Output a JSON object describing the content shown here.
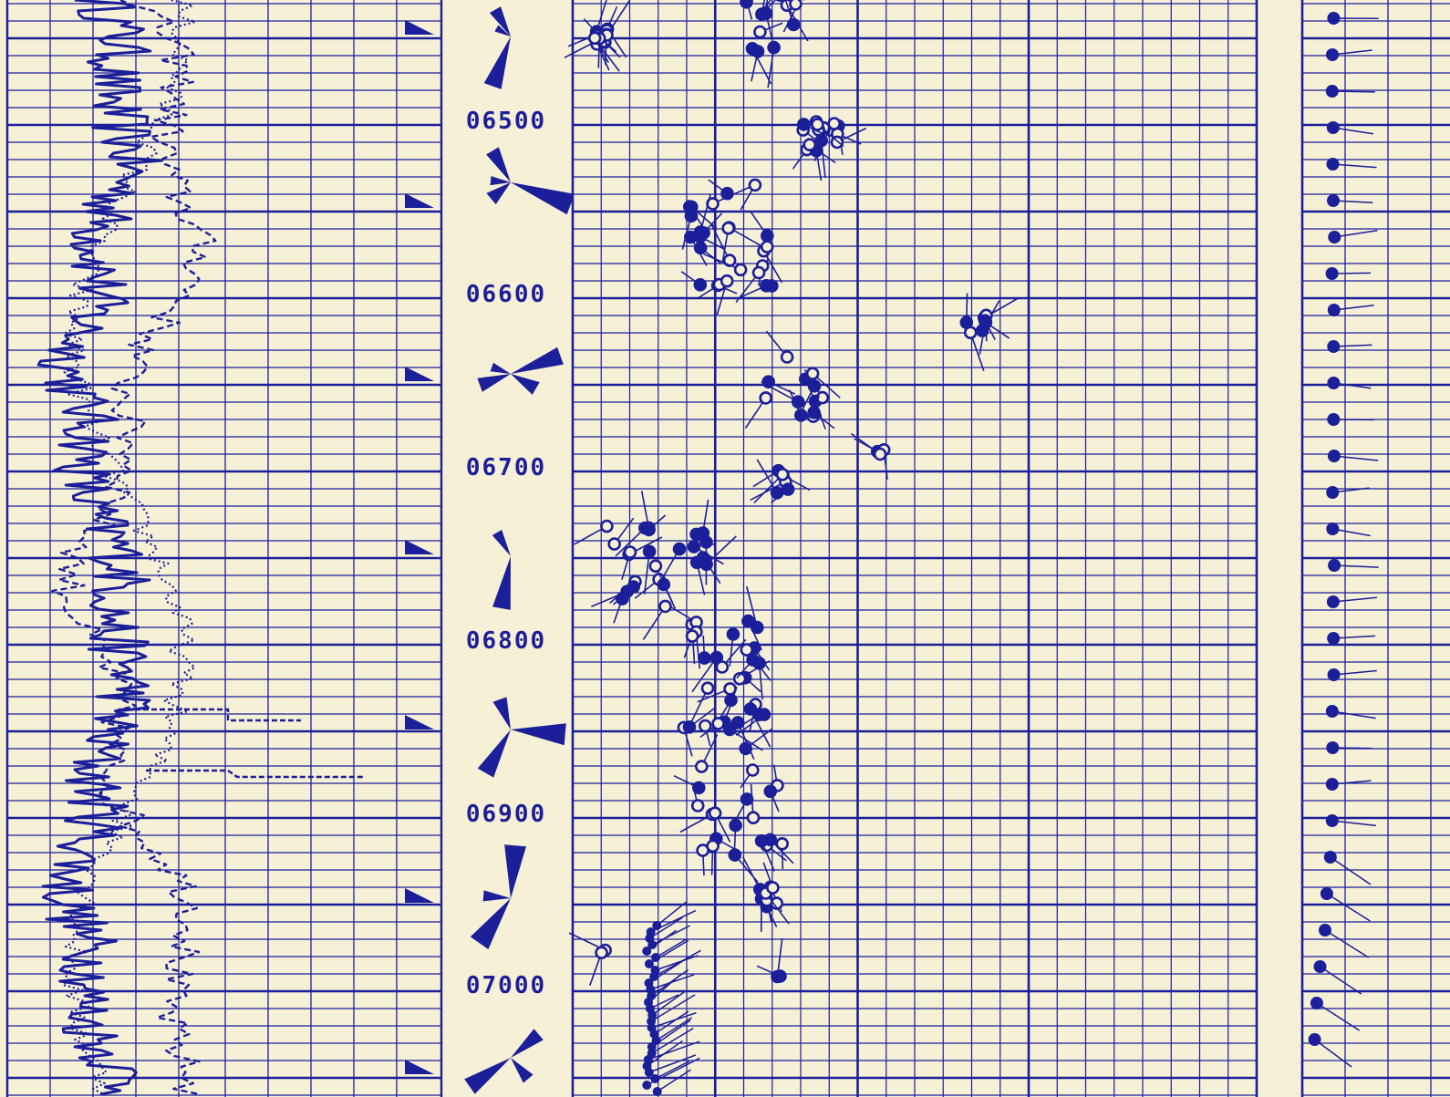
{
  "document": {
    "type": "dipmeter well log",
    "ink_color": "#1b1f99",
    "paper_color": "#f6f0d6"
  },
  "tracks": {
    "curves": "correlation curves (solid, dashed, dotted)",
    "rose_diagrams": "azimuth frequency roses",
    "tadpoles": "dip tadpole plot",
    "drift": "borehole drift tadpoles"
  },
  "depth_labels": [
    {
      "text": "06500",
      "depth": 6500
    },
    {
      "text": "06600",
      "depth": 6600
    },
    {
      "text": "06700",
      "depth": 6700
    },
    {
      "text": "06800",
      "depth": 6800
    },
    {
      "text": "06900",
      "depth": 6900
    },
    {
      "text": "07000",
      "depth": 7000
    }
  ]
}
